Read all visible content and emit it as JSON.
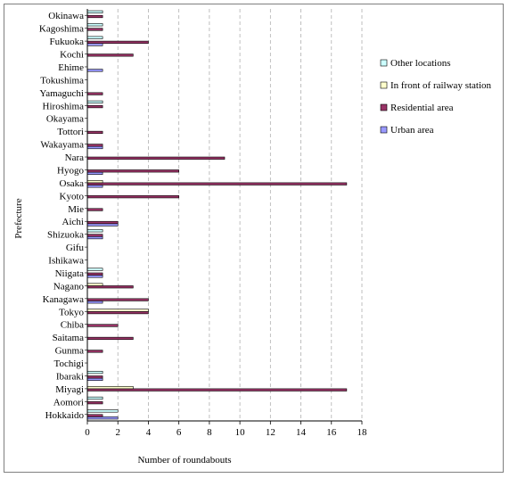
{
  "chart_data": {
    "type": "bar",
    "orientation": "horizontal",
    "categories": [
      "Hokkaido",
      "Aomori",
      "Miyagi",
      "Ibaraki",
      "Tochigi",
      "Gunma",
      "Saitama",
      "Chiba",
      "Tokyo",
      "Kanagawa",
      "Nagano",
      "Niigata",
      "Ishikawa",
      "Gifu",
      "Shizuoka",
      "Aichi",
      "Mie",
      "Kyoto",
      "Osaka",
      "Hyogo",
      "Nara",
      "Wakayama",
      "Tottori",
      "Okayama",
      "Hiroshima",
      "Yamaguchi",
      "Tokushima",
      "Ehime",
      "Kochi",
      "Fukuoka",
      "Kagoshima",
      "Okinawa"
    ],
    "series": [
      {
        "name": "Urban area",
        "color": "#9999ff",
        "values": [
          2,
          0,
          0,
          1,
          0,
          0,
          0,
          0,
          0,
          1,
          0,
          1,
          0,
          0,
          1,
          2,
          0,
          0,
          1,
          1,
          0,
          1,
          0,
          0,
          0,
          0,
          0,
          1,
          0,
          1,
          0,
          0
        ]
      },
      {
        "name": "Residential area",
        "color": "#993366",
        "values": [
          1,
          1,
          17,
          1,
          0,
          1,
          3,
          2,
          4,
          4,
          3,
          1,
          0,
          0,
          1,
          2,
          1,
          6,
          17,
          6,
          9,
          1,
          1,
          0,
          1,
          1,
          0,
          0,
          3,
          4,
          1,
          1
        ]
      },
      {
        "name": "In front of railway station",
        "color": "#ffffcc",
        "values": [
          0,
          0,
          3,
          0,
          0,
          0,
          0,
          0,
          4,
          0,
          1,
          0,
          0,
          0,
          0,
          0,
          0,
          0,
          1,
          0,
          0,
          0,
          0,
          0,
          0,
          0,
          0,
          0,
          0,
          0,
          0,
          0
        ]
      },
      {
        "name": "Other locations",
        "color": "#ccffff",
        "values": [
          2,
          1,
          0,
          1,
          0,
          0,
          0,
          0,
          0,
          0,
          0,
          1,
          0,
          0,
          1,
          0,
          0,
          0,
          0,
          0,
          0,
          0,
          0,
          0,
          1,
          0,
          0,
          0,
          0,
          1,
          1,
          1
        ]
      }
    ],
    "legend_order": [
      "Other locations",
      "In front of railway station",
      "Residential area",
      "Urban area"
    ],
    "xlabel": "Number of roundabouts",
    "ylabel": "Prefecture",
    "xlim": [
      0,
      18
    ],
    "xticks": [
      0,
      2,
      4,
      6,
      8,
      10,
      12,
      14,
      16,
      18
    ],
    "grid": "vertical dashed",
    "legend_position": "right"
  }
}
